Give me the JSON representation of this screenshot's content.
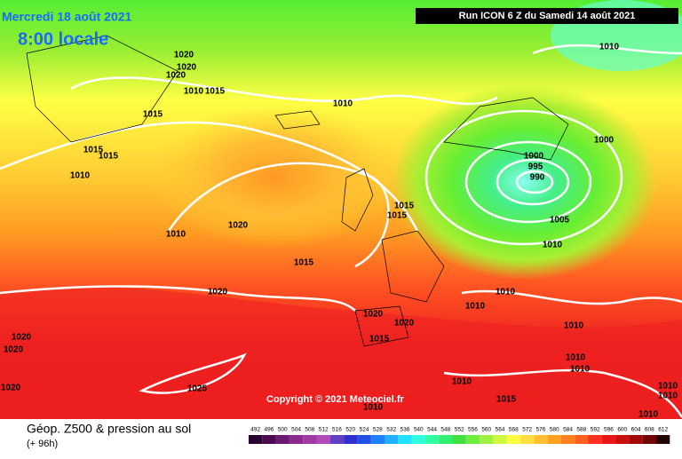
{
  "header": {
    "date": "Mercredi 18 août 2021",
    "time": "8:00 locale",
    "run": "Run ICON 6 Z du Samedi 14 août 2021"
  },
  "copyright": "Copyright © 2021 Meteociel.fr",
  "isobar_labels": [
    "1020",
    "1020",
    "1020",
    "1010",
    "1015",
    "1015",
    "1010",
    "1010",
    "1000",
    "1000",
    "995",
    "990",
    "1015",
    "1015",
    "1010",
    "1015",
    "1015",
    "1005",
    "1010",
    "1020",
    "1010",
    "1015",
    "1020",
    "1010",
    "1010",
    "1020",
    "1020",
    "1015",
    "1010",
    "1020",
    "1020",
    "1010",
    "1010",
    "1025",
    "1020",
    "1010",
    "1015",
    "1010",
    "1010",
    "1010",
    "1010"
  ],
  "legend": {
    "title": "Géop. Z500 & pression au sol",
    "subtitle": "(+ 96h)",
    "scale": [
      492,
      496,
      500,
      504,
      508,
      512,
      516,
      520,
      524,
      528,
      532,
      536,
      540,
      544,
      548,
      552,
      556,
      560,
      564,
      568,
      572,
      576,
      580,
      584,
      588,
      592,
      596,
      600,
      604,
      608,
      612
    ],
    "colors": [
      "#2a0030",
      "#4a0a50",
      "#6a1a70",
      "#8a2a8a",
      "#a03aa0",
      "#b04ab8",
      "#6040c0",
      "#3030d0",
      "#2050e8",
      "#2080ff",
      "#20b0ff",
      "#20e0ff",
      "#30ffe0",
      "#30ffa0",
      "#30f070",
      "#40e040",
      "#70ee40",
      "#a0f040",
      "#d0f840",
      "#ffff40",
      "#ffe040",
      "#ffc030",
      "#ffa020",
      "#ff8020",
      "#ff6020",
      "#ff3020",
      "#e81818",
      "#c81010",
      "#a00808",
      "#700404",
      "#200000"
    ]
  }
}
